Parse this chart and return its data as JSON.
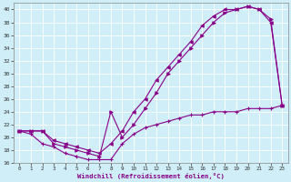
{
  "xlabel": "Windchill (Refroidissement éolien,°C)",
  "bg_color": "#d0eef8",
  "line_color": "#880088",
  "xlim": [
    -0.5,
    23.5
  ],
  "ylim": [
    16,
    41
  ],
  "xticks": [
    0,
    1,
    2,
    3,
    4,
    5,
    6,
    7,
    8,
    9,
    10,
    11,
    12,
    13,
    14,
    15,
    16,
    17,
    18,
    19,
    20,
    21,
    22,
    23
  ],
  "yticks": [
    16,
    18,
    20,
    22,
    24,
    26,
    28,
    30,
    32,
    34,
    36,
    38,
    40
  ],
  "line1_x": [
    0,
    1,
    2,
    3,
    4,
    5,
    6,
    7,
    8,
    9,
    10,
    11,
    12,
    13,
    14,
    15,
    16,
    17,
    18,
    19,
    20,
    21,
    22,
    23
  ],
  "line1_y": [
    21,
    20.5,
    19,
    18.5,
    17.5,
    17,
    16.5,
    16.5,
    16.5,
    19,
    20.5,
    21.5,
    22,
    22.5,
    23,
    23.5,
    23.5,
    24,
    24,
    24,
    24.5,
    24.5,
    24.5,
    25
  ],
  "line2_x": [
    0,
    1,
    2,
    3,
    4,
    5,
    6,
    7,
    8,
    9,
    10,
    11,
    12,
    13,
    14,
    15,
    16,
    17,
    18,
    19,
    20,
    21,
    22,
    23
  ],
  "line2_y": [
    21,
    21,
    21,
    19,
    18.5,
    18,
    17.5,
    17,
    24,
    20,
    22,
    24.5,
    27,
    30,
    32,
    34,
    36,
    38,
    39.5,
    40,
    40.5,
    40,
    38.5,
    25
  ],
  "line3_x": [
    0,
    1,
    2,
    3,
    4,
    5,
    6,
    7,
    8,
    9,
    10,
    11,
    12,
    13,
    14,
    15,
    16,
    17,
    18,
    19,
    20,
    21,
    22,
    23
  ],
  "line3_y": [
    21,
    21,
    21,
    19.5,
    19,
    18.5,
    18,
    17.5,
    19,
    21,
    24,
    26,
    29,
    31,
    33,
    35,
    37.5,
    39,
    40,
    40,
    40.5,
    40,
    38,
    25
  ]
}
